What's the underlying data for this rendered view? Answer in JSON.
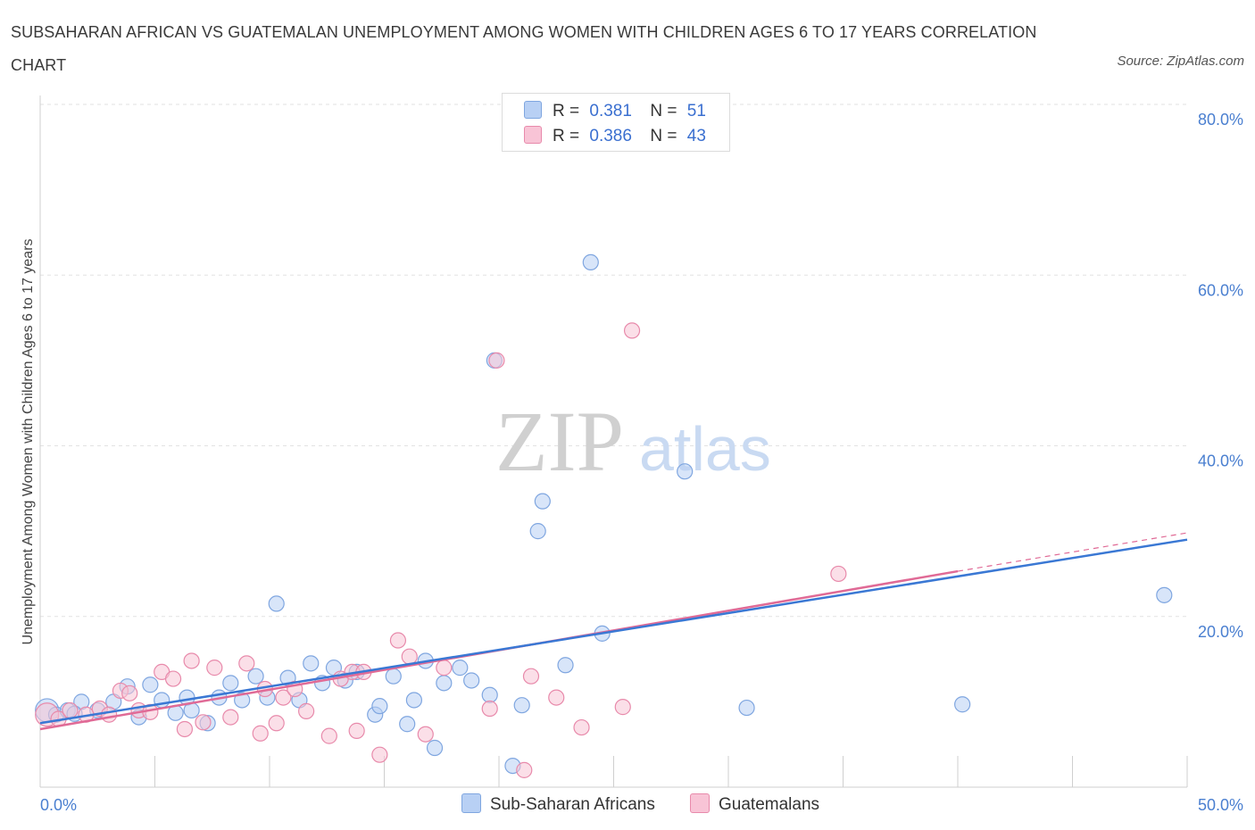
{
  "title": "SUBSAHARAN AFRICAN VS GUATEMALAN UNEMPLOYMENT AMONG WOMEN WITH CHILDREN AGES 6 TO 17 YEARS CORRELATION CHART",
  "source": "Source: ZipAtlas.com",
  "watermark": {
    "zip": "ZIP",
    "atlas": "atlas"
  },
  "legend": {
    "r_label": "R =",
    "n_label": "N =",
    "rows": [
      {
        "r": "0.381",
        "n": "51"
      },
      {
        "r": "0.386",
        "n": "43"
      }
    ]
  },
  "colors": {
    "blue_fill": "#b8d0f4",
    "blue_stroke": "#7fa6e0",
    "blue_line": "#3a78d4",
    "pink_fill": "#f8c4d6",
    "pink_stroke": "#e88aab",
    "pink_line": "#e06a96"
  },
  "chart_data": {
    "type": "scatter",
    "title": "SUBSAHARAN AFRICAN VS GUATEMALAN UNEMPLOYMENT AMONG WOMEN WITH CHILDREN AGES 6 TO 17 YEARS CORRELATION CHART",
    "xlabel": "",
    "ylabel": "Unemployment Among Women with Children Ages 6 to 17 years",
    "xlim": [
      0,
      50
    ],
    "ylim": [
      0,
      80
    ],
    "x_tick_labels": [
      "0.0%",
      "50.0%"
    ],
    "y_tick_labels": [
      "20.0%",
      "40.0%",
      "60.0%",
      "80.0%"
    ],
    "y_ticks": [
      20,
      40,
      60,
      80
    ],
    "grid": true,
    "legend_position": "top-center",
    "series": [
      {
        "name": "Sub-Saharan Africans",
        "r": 0.381,
        "n": 51,
        "trend": {
          "x": [
            0,
            50
          ],
          "y": [
            7.5,
            29.0
          ]
        },
        "points": [
          [
            0.3,
            9.0
          ],
          [
            0.7,
            8.5
          ],
          [
            1.2,
            9.0
          ],
          [
            1.8,
            10.0
          ],
          [
            2.5,
            9.0
          ],
          [
            3.2,
            10.0
          ],
          [
            3.8,
            11.8
          ],
          [
            4.3,
            8.2
          ],
          [
            4.8,
            12.0
          ],
          [
            5.3,
            10.2
          ],
          [
            5.9,
            8.7
          ],
          [
            6.4,
            10.5
          ],
          [
            6.6,
            9.0
          ],
          [
            7.3,
            7.5
          ],
          [
            7.8,
            10.5
          ],
          [
            8.3,
            12.2
          ],
          [
            8.8,
            10.2
          ],
          [
            9.4,
            13.0
          ],
          [
            9.9,
            10.5
          ],
          [
            10.3,
            21.5
          ],
          [
            10.8,
            12.8
          ],
          [
            11.3,
            10.2
          ],
          [
            11.8,
            14.5
          ],
          [
            12.3,
            12.2
          ],
          [
            12.8,
            14.0
          ],
          [
            13.3,
            12.5
          ],
          [
            13.8,
            13.5
          ],
          [
            14.6,
            8.5
          ],
          [
            14.8,
            9.5
          ],
          [
            15.4,
            13.0
          ],
          [
            16.0,
            7.4
          ],
          [
            16.3,
            10.2
          ],
          [
            16.8,
            14.8
          ],
          [
            17.2,
            4.6
          ],
          [
            17.6,
            12.2
          ],
          [
            18.3,
            14.0
          ],
          [
            18.8,
            12.5
          ],
          [
            19.6,
            10.8
          ],
          [
            19.8,
            50.0
          ],
          [
            20.6,
            2.5
          ],
          [
            21.0,
            9.6
          ],
          [
            21.7,
            30.0
          ],
          [
            21.9,
            33.5
          ],
          [
            22.9,
            14.3
          ],
          [
            24.0,
            61.5
          ],
          [
            24.5,
            18.0
          ],
          [
            28.1,
            37.0
          ],
          [
            30.8,
            9.3
          ],
          [
            40.2,
            9.7
          ],
          [
            49.0,
            22.5
          ],
          [
            1.5,
            8.6
          ]
        ]
      },
      {
        "name": "Guatemalans",
        "r": 0.386,
        "n": 43,
        "trend": {
          "x": [
            0,
            40
          ],
          "y": [
            6.8,
            25.3
          ]
        },
        "dashed_extension": {
          "x": [
            40,
            50
          ],
          "y": [
            25.3,
            29.8
          ]
        },
        "points": [
          [
            0.3,
            8.5
          ],
          [
            0.8,
            8.0
          ],
          [
            1.3,
            9.0
          ],
          [
            2.0,
            8.5
          ],
          [
            2.6,
            9.2
          ],
          [
            3.0,
            8.5
          ],
          [
            3.5,
            11.3
          ],
          [
            3.9,
            11.0
          ],
          [
            4.3,
            9.0
          ],
          [
            4.8,
            8.8
          ],
          [
            5.3,
            13.5
          ],
          [
            5.8,
            12.7
          ],
          [
            6.3,
            6.8
          ],
          [
            6.6,
            14.8
          ],
          [
            7.1,
            7.6
          ],
          [
            7.6,
            14.0
          ],
          [
            8.3,
            8.2
          ],
          [
            9.0,
            14.5
          ],
          [
            9.6,
            6.3
          ],
          [
            9.8,
            11.5
          ],
          [
            10.3,
            7.5
          ],
          [
            10.6,
            10.5
          ],
          [
            11.1,
            11.5
          ],
          [
            11.6,
            8.9
          ],
          [
            12.6,
            6.0
          ],
          [
            13.1,
            12.7
          ],
          [
            13.6,
            13.5
          ],
          [
            13.8,
            6.6
          ],
          [
            14.1,
            13.5
          ],
          [
            14.8,
            3.8
          ],
          [
            15.6,
            17.2
          ],
          [
            16.1,
            15.3
          ],
          [
            16.8,
            6.2
          ],
          [
            17.6,
            14.0
          ],
          [
            19.6,
            9.2
          ],
          [
            19.9,
            50.0
          ],
          [
            21.1,
            2.0
          ],
          [
            21.4,
            13.0
          ],
          [
            22.5,
            10.5
          ],
          [
            23.6,
            7.0
          ],
          [
            25.4,
            9.4
          ],
          [
            25.8,
            53.5
          ],
          [
            34.8,
            25.0
          ]
        ]
      }
    ]
  }
}
